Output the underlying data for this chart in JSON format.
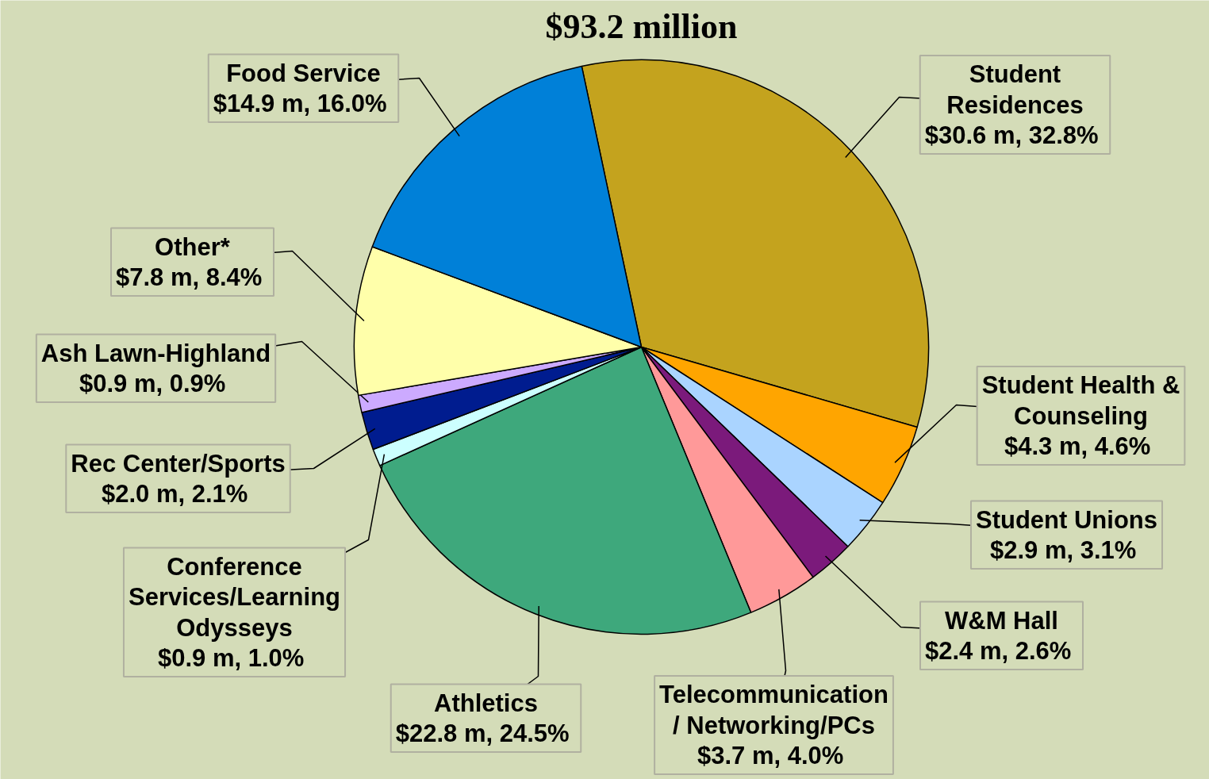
{
  "chart_data": {
    "type": "pie",
    "title": "$93.2 million",
    "categories": [
      "Student Residences",
      "Student Health & Counseling",
      "Student Unions",
      "W&M Hall",
      "Telecommunication / Networking/PCs",
      "Athletics",
      "Conference Services/Learning Odysseys",
      "Rec Center/Sports",
      "Ash Lawn-Highland",
      "Other*",
      "Food Service"
    ],
    "values": [
      30.6,
      4.3,
      2.9,
      2.4,
      3.7,
      22.8,
      0.9,
      2.0,
      0.9,
      7.8,
      14.9
    ],
    "value_labels": [
      "$30.6 m,  32.8%",
      "$4.3 m,  4.6%",
      "$2.9 m,  3.1%",
      "$2.4 m,  2.6%",
      "$3.7 m,  4.0%",
      "$22.8 m,  24.5%",
      "$0.9 m,  1.0%",
      "$2.0 m,  2.1%",
      "$0.9 m,  0.9%",
      "$7.8 m,  8.4%",
      "$14.9 m,  16.0%"
    ],
    "colors": [
      "#c4a31e",
      "#ffa500",
      "#aad4ff",
      "#7b1a7b",
      "#ff9999",
      "#3ea87c",
      "#ccffff",
      "#001c8f",
      "#ccaaff",
      "#ffffaa",
      "#0080d8"
    ]
  }
}
